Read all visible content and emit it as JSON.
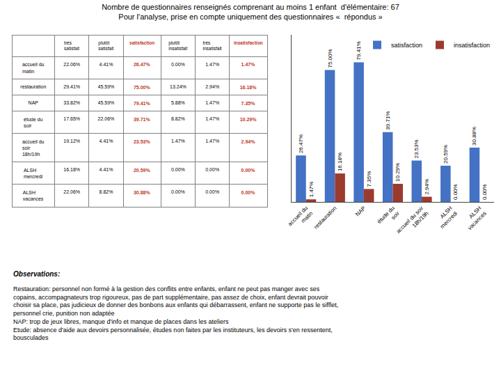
{
  "chart_data": [
    {
      "type": "bar",
      "title": "Nombre de questionnaires renseignés comprenant au moins 1 enfant  d'élémentaire: 67",
      "subtitle": "Pour l'analyse, prise en compte uniquement des questionnaires «  répondus »",
      "categories": [
        "accueil du\nmatin",
        "restauration",
        "NAP",
        "étude du\nsoir",
        "accueil du soir\n18h/19h",
        "ALSH\nmercredi",
        "ALSH\nvacances"
      ],
      "series": [
        {
          "name": "satisfaction",
          "color": "#4472C4",
          "values": [
            26.47,
            75,
            79.41,
            39.71,
            23.53,
            20.59,
            30.88
          ],
          "value_labels": [
            "26.47%",
            "75.00%",
            "79.41%",
            "39.71%",
            "23.53%",
            "20.59%",
            "30.88%"
          ]
        },
        {
          "name": "insatisfaction",
          "color": "#9C3A2E",
          "values": [
            1.47,
            16.18,
            7.35,
            10.29,
            2.94,
            0,
            0
          ],
          "value_labels": [
            "1.47%",
            "16.18%",
            "7.35%",
            "10.29%",
            "2.94%",
            "0.00%",
            "0.00%"
          ]
        }
      ],
      "ylim": [
        0,
        95
      ],
      "tick_labels": "x",
      "grid": false,
      "legend": "upper right",
      "data_labels": true,
      "annotations": [
        "Observations:",
        "Restauration: personnel non formé à la gestion des conflits entre enfants, enfant ne peut pas manger avec ses\ncopains, accompagnateurs trop rigoureux, pas de part supplémentaire, pas assez de choix, enfant devrait pouvoir\nchoisir sa place, pas judicieux de donner des bonbons aux enfants qui débarrassent, enfant ne supporte pas le sifflet,\npersonnel crie, punition non adaptée\nNAP: trop de jeux libres, manque d'info et manque de places dans les ateliers\nEtude: absence d'aide aux devoirs personnalisée, études non faites par les instituteurs, les devoirs s'en ressentent,\nbousculades"
      ]
    },
    {
      "type": "table",
      "categories": [
        "accueil du\nmatin",
        "restauration",
        "NAP",
        "étude du\nsoir",
        "accueil du\nsoir\n18h/19h",
        "ALSH\nmercredi",
        "ALSH\nvacances"
      ],
      "series": [
        {
          "name": "très satisfait",
          "values": [
            22.06,
            29.41,
            33.82,
            17.65,
            19.12,
            16.18,
            22.06
          ],
          "value_labels": [
            "22.06%",
            "29.41%",
            "33.82%",
            "17.65%",
            "19.12%",
            "16.18%",
            "22.06%"
          ]
        },
        {
          "name": "plutôt satisfait",
          "values": [
            4.41,
            45.59,
            45.59,
            22.06,
            4.41,
            4.41,
            8.82
          ],
          "value_labels": [
            "4.41%",
            "45.59%",
            "45.59%",
            "22.06%",
            "4.41%",
            "4.41%",
            "8.82%"
          ]
        },
        {
          "name": "satisfaction",
          "color": "#C0392B",
          "values": [
            26.47,
            75,
            79.41,
            39.71,
            23.53,
            20.59,
            30.88
          ],
          "value_labels": [
            "26.47%",
            "75.00%",
            "79.41%",
            "39.71%",
            "23.53%",
            "20.59%",
            "30.88%"
          ]
        },
        {
          "name": "plutôt\ninsatisfait",
          "values": [
            0,
            13.24,
            5.88,
            8.82,
            1.47,
            0,
            0
          ],
          "value_labels": [
            "0.00%",
            "13.24%",
            "5.88%",
            "8.82%",
            "1.47%",
            "0.00%",
            "0.00%"
          ]
        },
        {
          "name": "très insatisfait",
          "values": [
            1.47,
            2.94,
            1.47,
            1.47,
            1.47,
            0,
            0
          ],
          "value_labels": [
            "1.47%",
            "2.94%",
            "1.47%",
            "1.47%",
            "1.47%",
            "0.00%",
            "0.00%"
          ]
        },
        {
          "name": "insatisfaction",
          "color": "#C0392B",
          "values": [
            1.47,
            16.18,
            7.35,
            10.29,
            2.94,
            0,
            0
          ],
          "value_labels": [
            "1.47%",
            "16.18%",
            "7.35%",
            "10.29%",
            "2.94%",
            "0.00%",
            "0.00%"
          ]
        }
      ]
    }
  ]
}
